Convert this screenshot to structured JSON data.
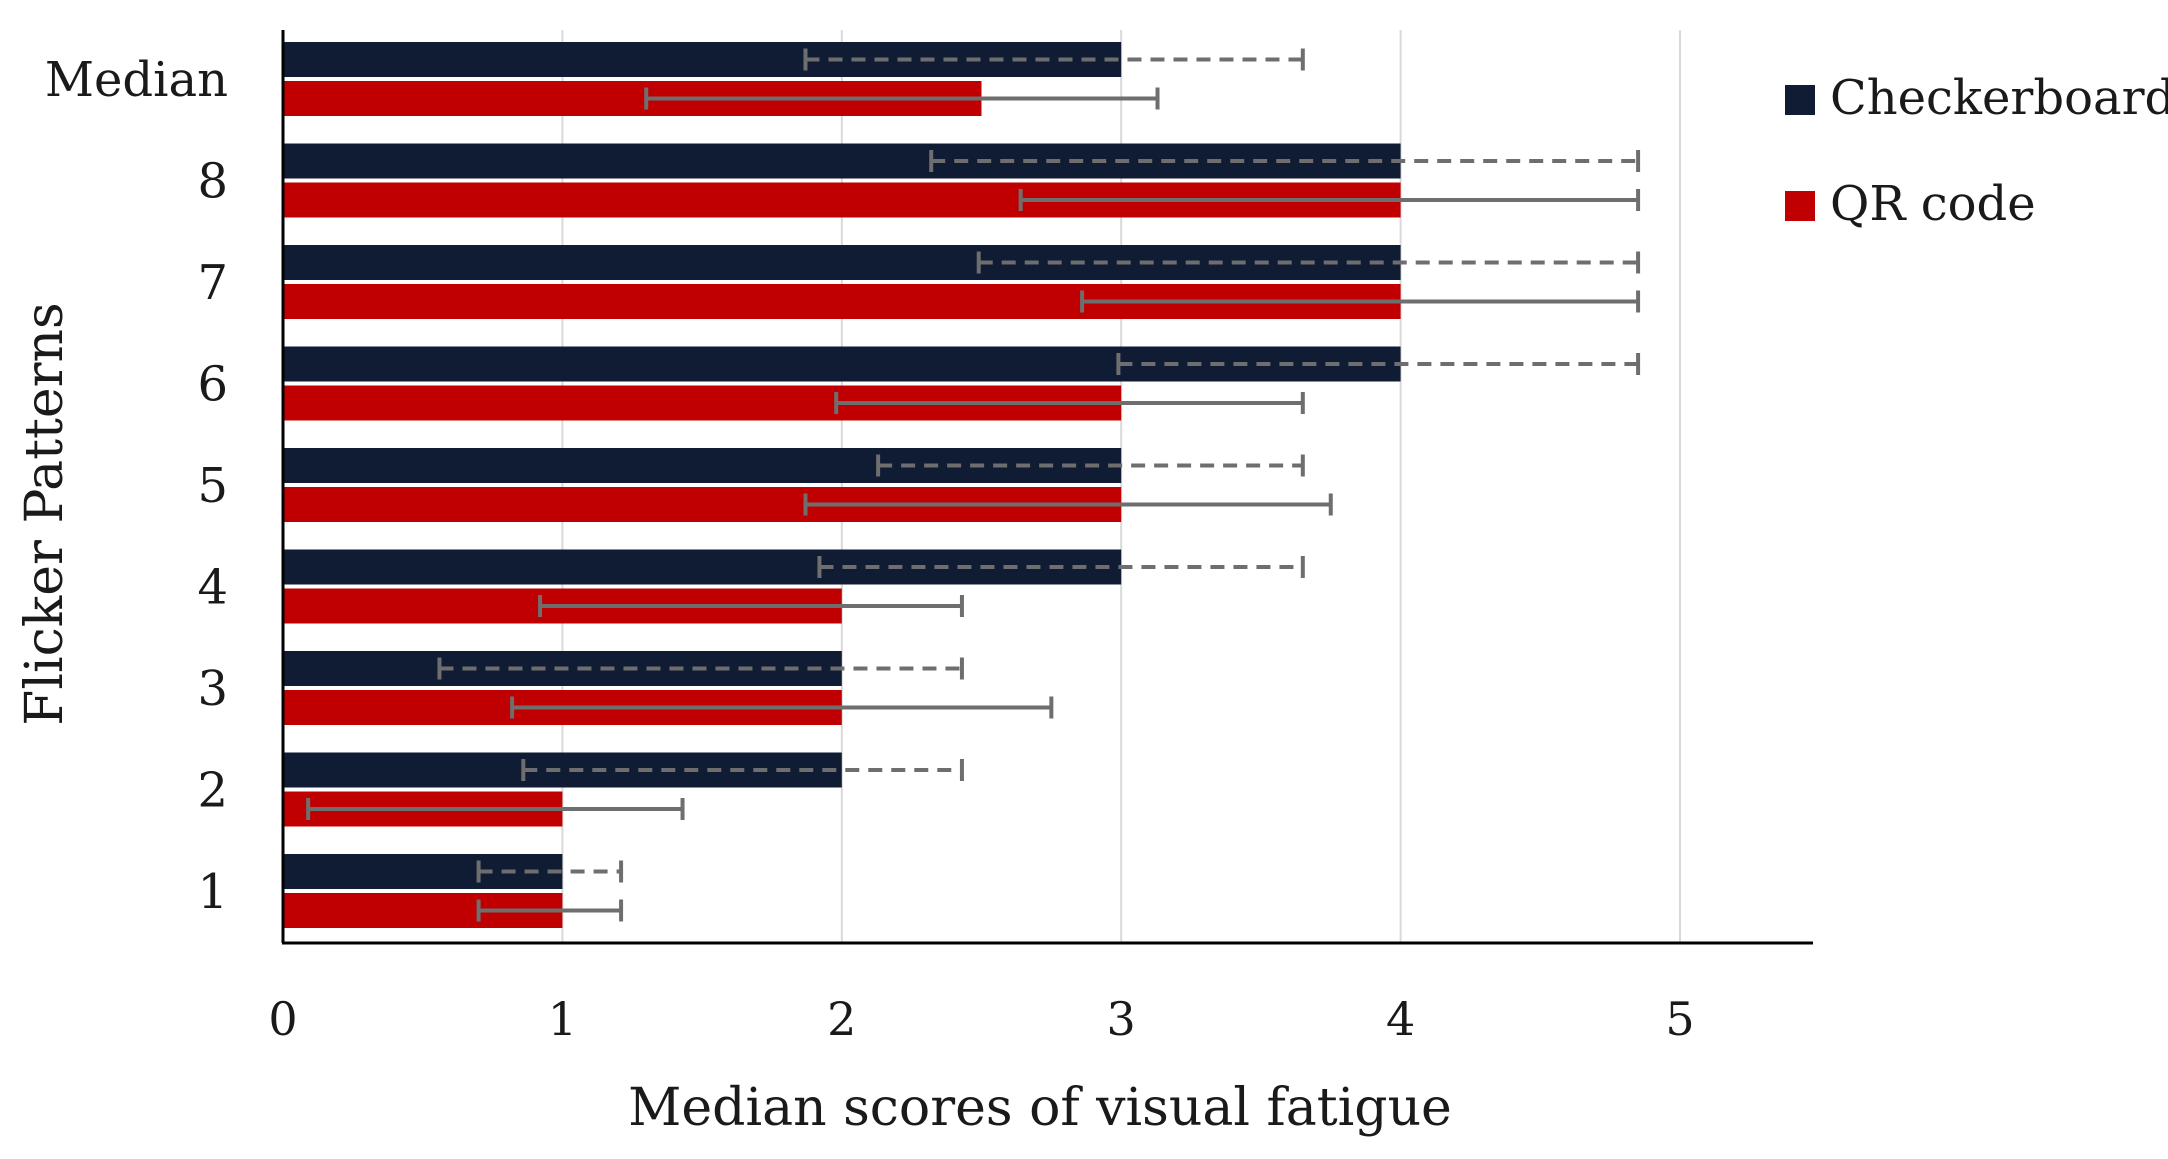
{
  "chart_data": {
    "type": "bar",
    "orientation": "horizontal",
    "title": "",
    "xlabel": "Median scores of visual fatigue",
    "ylabel": "Flicker Patterns",
    "categories": [
      "Median",
      "8",
      "7",
      "6",
      "5",
      "4",
      "3",
      "2",
      "1"
    ],
    "xlim": [
      0,
      5.5
    ],
    "xticks": [
      "0",
      "1",
      "2",
      "3",
      "4",
      "5"
    ],
    "grid": "vertical",
    "legend_position": "top-right",
    "series": [
      {
        "name": "Checkerboard",
        "color": "#0f1c33",
        "error_style": "dashed",
        "values": [
          3,
          4,
          4,
          4,
          3,
          3,
          2,
          2,
          1
        ],
        "error_low": [
          1.87,
          2.32,
          2.49,
          2.99,
          2.13,
          1.92,
          0.56,
          0.86,
          0.7
        ],
        "error_high": [
          3.65,
          4.85,
          4.85,
          4.85,
          3.65,
          3.65,
          2.43,
          2.43,
          1.21
        ]
      },
      {
        "name": "QR code",
        "color": "#c00000",
        "error_style": "solid",
        "values": [
          2.5,
          4,
          4,
          3,
          3,
          2,
          2,
          1,
          1
        ],
        "error_low": [
          1.3,
          2.64,
          2.86,
          1.98,
          1.87,
          0.92,
          0.82,
          0.09,
          0.7
        ],
        "error_high": [
          3.13,
          4.85,
          4.85,
          3.65,
          3.75,
          2.43,
          2.75,
          1.43,
          1.21
        ]
      }
    ]
  }
}
